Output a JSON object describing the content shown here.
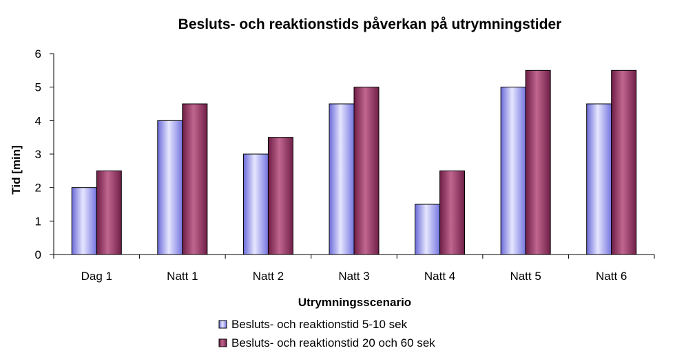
{
  "chart_data": {
    "type": "bar",
    "title": "Besluts- och reaktionstids påverkan på utrymningstider",
    "xlabel": "Utrymningsscenario",
    "ylabel": "Tid [min]",
    "categories": [
      "Dag 1",
      "Natt 1",
      "Natt 2",
      "Natt 3",
      "Natt 4",
      "Natt 5",
      "Natt 6"
    ],
    "series": [
      {
        "name": "Besluts- och reaktionstid 5-10 sek",
        "values": [
          2,
          4,
          3,
          4.5,
          1.5,
          5,
          4.5
        ],
        "color": "#9999ff"
      },
      {
        "name": "Besluts- och reaktionstid 20 och 60 sek",
        "values": [
          2.5,
          4.5,
          3.5,
          5,
          2.5,
          5.5,
          5.5
        ],
        "color": "#993366"
      }
    ],
    "ylim": [
      0,
      6
    ],
    "yticks": [
      "0",
      "1",
      "2",
      "3",
      "4",
      "5",
      "6"
    ],
    "grid": false,
    "legend_position": "bottom"
  }
}
